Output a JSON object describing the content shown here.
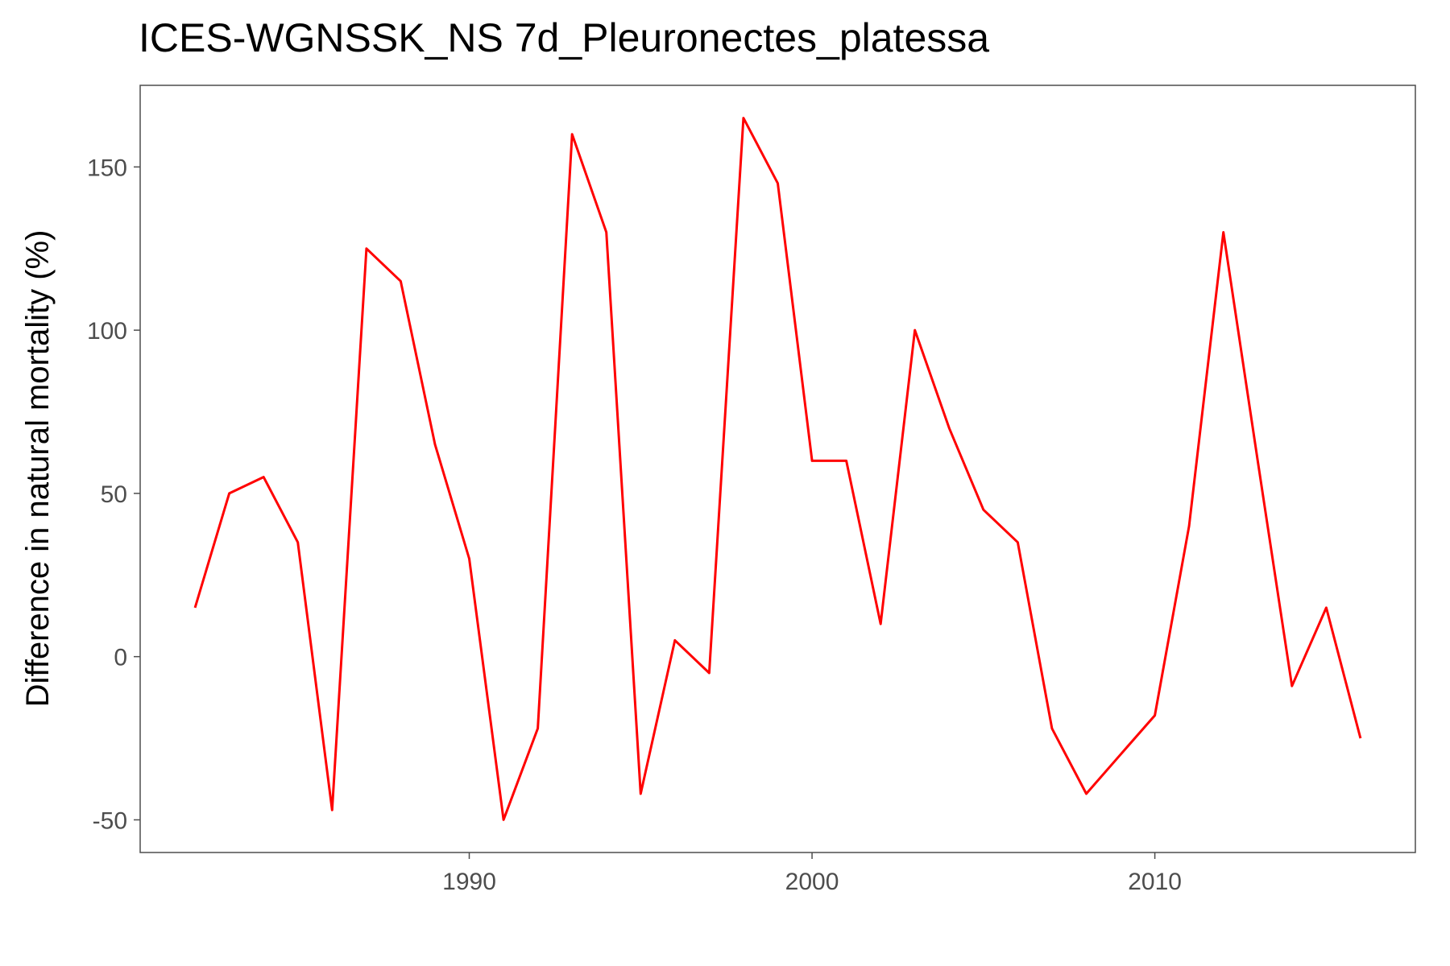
{
  "chart_data": {
    "type": "line",
    "title": "ICES-WGNSSK_NS 7d_Pleuronectes_platessa",
    "xlabel": "",
    "ylabel": "Difference in natural mortality (%)",
    "xlim": [
      1980.4,
      2017.6
    ],
    "ylim": [
      -60,
      175
    ],
    "x_ticks": [
      1990,
      2000,
      2010
    ],
    "y_ticks": [
      -50,
      0,
      50,
      100,
      150
    ],
    "grid": false,
    "legend": "none",
    "line_color": "#ff0000",
    "series": [
      {
        "x": [
          1982,
          1983,
          1984,
          1985,
          1986,
          1987,
          1988,
          1989,
          1990,
          1991,
          1992,
          1993,
          1994,
          1995,
          1996,
          1997,
          1998,
          1999,
          2000,
          2001,
          2002,
          2003,
          2004,
          2005,
          2006,
          2007,
          2008,
          2009,
          2010,
          2011,
          2012,
          2013,
          2014,
          2015,
          2016
        ],
        "values": [
          15,
          50,
          55,
          35,
          -47,
          125,
          115,
          65,
          30,
          -50,
          -22,
          160,
          130,
          -42,
          5,
          -5,
          165,
          145,
          60,
          60,
          10,
          100,
          70,
          45,
          35,
          -22,
          -42,
          -30,
          -18,
          40,
          130,
          60,
          -9,
          15,
          -25
        ]
      }
    ]
  }
}
